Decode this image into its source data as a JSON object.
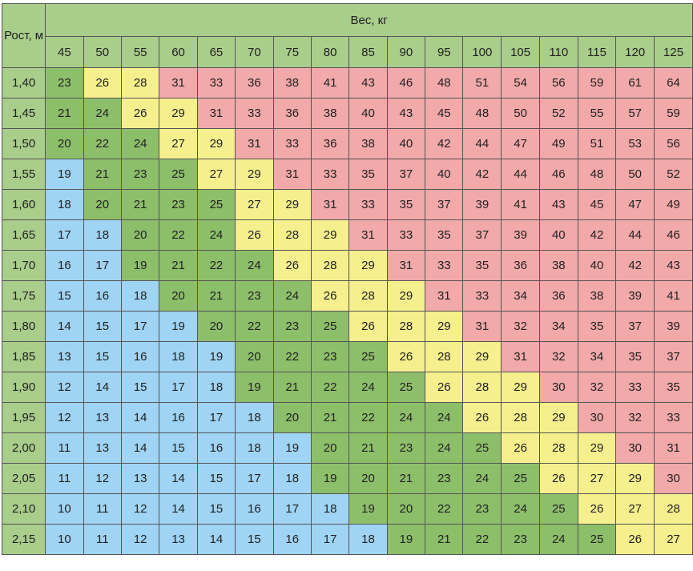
{
  "chart_data": {
    "type": "table",
    "row_header": "Рост, м",
    "col_header": "Вес, кг",
    "weights": [
      "45",
      "50",
      "55",
      "60",
      "65",
      "70",
      "75",
      "80",
      "85",
      "90",
      "95",
      "100",
      "105",
      "110",
      "115",
      "120",
      "125"
    ],
    "heights": [
      "1,40",
      "1,45",
      "1,50",
      "1,55",
      "1,60",
      "1,65",
      "1,70",
      "1,75",
      "1,80",
      "1,85",
      "1,90",
      "1,95",
      "2,00",
      "2,05",
      "2,10",
      "2,15"
    ],
    "values": [
      [
        23,
        26,
        28,
        31,
        33,
        36,
        38,
        41,
        43,
        46,
        48,
        51,
        54,
        56,
        59,
        61,
        64
      ],
      [
        21,
        24,
        26,
        29,
        31,
        33,
        36,
        38,
        40,
        43,
        45,
        48,
        50,
        52,
        55,
        57,
        59
      ],
      [
        20,
        22,
        24,
        27,
        29,
        31,
        33,
        36,
        38,
        40,
        42,
        44,
        47,
        49,
        51,
        53,
        56
      ],
      [
        19,
        21,
        23,
        25,
        27,
        29,
        31,
        33,
        35,
        37,
        40,
        42,
        44,
        46,
        48,
        50,
        52
      ],
      [
        18,
        20,
        21,
        23,
        25,
        27,
        29,
        31,
        33,
        35,
        37,
        39,
        41,
        43,
        45,
        47,
        49
      ],
      [
        17,
        18,
        20,
        22,
        24,
        26,
        28,
        29,
        31,
        33,
        35,
        37,
        39,
        40,
        42,
        44,
        46
      ],
      [
        16,
        17,
        19,
        21,
        22,
        24,
        26,
        28,
        29,
        31,
        33,
        35,
        36,
        38,
        40,
        42,
        43
      ],
      [
        15,
        16,
        18,
        20,
        21,
        23,
        24,
        26,
        28,
        29,
        31,
        33,
        34,
        36,
        38,
        39,
        41
      ],
      [
        14,
        15,
        17,
        19,
        20,
        22,
        23,
        25,
        26,
        28,
        29,
        31,
        32,
        34,
        35,
        37,
        39
      ],
      [
        13,
        15,
        16,
        18,
        19,
        20,
        22,
        23,
        25,
        26,
        28,
        29,
        31,
        32,
        34,
        35,
        37
      ],
      [
        12,
        14,
        15,
        17,
        18,
        19,
        21,
        22,
        24,
        25,
        26,
        28,
        29,
        30,
        32,
        33,
        35
      ],
      [
        12,
        13,
        14,
        16,
        17,
        18,
        20,
        21,
        22,
        24,
        24,
        26,
        28,
        29,
        30,
        32,
        33
      ],
      [
        11,
        13,
        14,
        15,
        16,
        18,
        19,
        20,
        21,
        23,
        24,
        25,
        26,
        28,
        29,
        30,
        31
      ],
      [
        11,
        12,
        13,
        14,
        15,
        17,
        18,
        19,
        20,
        21,
        23,
        24,
        25,
        26,
        27,
        29,
        30
      ],
      [
        10,
        11,
        12,
        14,
        15,
        16,
        17,
        18,
        19,
        20,
        22,
        23,
        24,
        25,
        26,
        27,
        28
      ],
      [
        10,
        11,
        12,
        13,
        14,
        15,
        16,
        17,
        18,
        19,
        21,
        22,
        23,
        24,
        25,
        26,
        27
      ]
    ],
    "categories": [
      [
        "g",
        "y",
        "y",
        "r",
        "r",
        "r",
        "r",
        "r",
        "r",
        "r",
        "r",
        "r",
        "r",
        "r",
        "r",
        "r",
        "r"
      ],
      [
        "g",
        "g",
        "y",
        "y",
        "r",
        "r",
        "r",
        "r",
        "r",
        "r",
        "r",
        "r",
        "r",
        "r",
        "r",
        "r",
        "r"
      ],
      [
        "g",
        "g",
        "g",
        "y",
        "y",
        "r",
        "r",
        "r",
        "r",
        "r",
        "r",
        "r",
        "r",
        "r",
        "r",
        "r",
        "r"
      ],
      [
        "b",
        "g",
        "g",
        "g",
        "y",
        "y",
        "r",
        "r",
        "r",
        "r",
        "r",
        "r",
        "r",
        "r",
        "r",
        "r",
        "r"
      ],
      [
        "b",
        "g",
        "g",
        "g",
        "g",
        "y",
        "y",
        "r",
        "r",
        "r",
        "r",
        "r",
        "r",
        "r",
        "r",
        "r",
        "r"
      ],
      [
        "b",
        "b",
        "g",
        "g",
        "g",
        "y",
        "y",
        "y",
        "r",
        "r",
        "r",
        "r",
        "r",
        "r",
        "r",
        "r",
        "r"
      ],
      [
        "b",
        "b",
        "g",
        "g",
        "g",
        "g",
        "y",
        "y",
        "y",
        "r",
        "r",
        "r",
        "r",
        "r",
        "r",
        "r",
        "r"
      ],
      [
        "b",
        "b",
        "b",
        "g",
        "g",
        "g",
        "g",
        "y",
        "y",
        "y",
        "r",
        "r",
        "r",
        "r",
        "r",
        "r",
        "r"
      ],
      [
        "b",
        "b",
        "b",
        "b",
        "g",
        "g",
        "g",
        "g",
        "y",
        "y",
        "y",
        "r",
        "r",
        "r",
        "r",
        "r",
        "r"
      ],
      [
        "b",
        "b",
        "b",
        "b",
        "b",
        "g",
        "g",
        "g",
        "g",
        "y",
        "y",
        "y",
        "r",
        "r",
        "r",
        "r",
        "r"
      ],
      [
        "b",
        "b",
        "b",
        "b",
        "b",
        "g",
        "g",
        "g",
        "g",
        "g",
        "y",
        "y",
        "y",
        "r",
        "r",
        "r",
        "r"
      ],
      [
        "b",
        "b",
        "b",
        "b",
        "b",
        "b",
        "g",
        "g",
        "g",
        "g",
        "g",
        "y",
        "y",
        "y",
        "r",
        "r",
        "r"
      ],
      [
        "b",
        "b",
        "b",
        "b",
        "b",
        "b",
        "b",
        "g",
        "g",
        "g",
        "g",
        "g",
        "y",
        "y",
        "y",
        "r",
        "r"
      ],
      [
        "b",
        "b",
        "b",
        "b",
        "b",
        "b",
        "b",
        "g",
        "g",
        "g",
        "g",
        "g",
        "g",
        "y",
        "y",
        "y",
        "r"
      ],
      [
        "b",
        "b",
        "b",
        "b",
        "b",
        "b",
        "b",
        "b",
        "g",
        "g",
        "g",
        "g",
        "g",
        "g",
        "y",
        "y",
        "y"
      ],
      [
        "b",
        "b",
        "b",
        "b",
        "b",
        "b",
        "b",
        "b",
        "b",
        "g",
        "g",
        "g",
        "g",
        "g",
        "g",
        "y",
        "y"
      ]
    ],
    "colors": {
      "header": "#a9cd8a",
      "b": "#9fd4f4",
      "g": "#8dbf6a",
      "y": "#f6ef8e",
      "r": "#f2a9a9"
    }
  }
}
